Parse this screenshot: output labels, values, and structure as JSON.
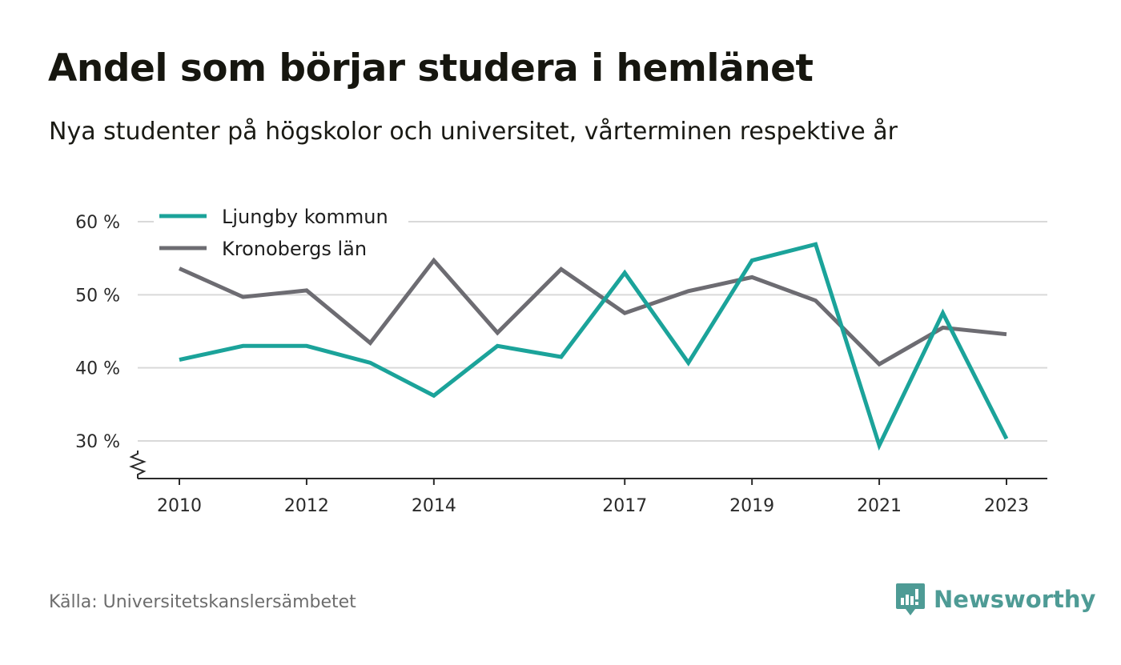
{
  "chart_data": {
    "type": "line",
    "title": "Andel som börjar studera i hemlänet",
    "subtitle": "Nya studenter på högskolor och universitet, vårterminen respektive år",
    "x": [
      2010,
      2011,
      2012,
      2013,
      2014,
      2015,
      2016,
      2017,
      2018,
      2019,
      2020,
      2021,
      2022,
      2023
    ],
    "x_tick_values": [
      2010,
      2012,
      2014,
      2017,
      2019,
      2021,
      2023
    ],
    "x_tick_labels": [
      "2010",
      "2012",
      "2014",
      "2017",
      "2019",
      "2021",
      "2023"
    ],
    "y_tick_values": [
      30,
      40,
      50,
      60
    ],
    "y_tick_labels": [
      "30 %",
      "40 %",
      "50 %",
      "60 %"
    ],
    "ylim": [
      25,
      60
    ],
    "y_axis_break": true,
    "grid": "horizontal",
    "legend_position": "top-left",
    "series": [
      {
        "name": "Ljungby kommun",
        "color": "#1ba39a",
        "values": [
          41.1,
          43.0,
          43.0,
          40.7,
          36.2,
          43.0,
          41.5,
          53.0,
          40.7,
          54.7,
          56.9,
          29.4,
          47.5,
          30.3
        ]
      },
      {
        "name": "Kronobergs län",
        "color": "#6d6c72",
        "values": [
          53.6,
          49.7,
          50.6,
          43.4,
          54.7,
          44.8,
          53.5,
          47.5,
          50.5,
          52.4,
          49.2,
          40.5,
          45.5,
          44.6
        ]
      }
    ]
  },
  "footer": {
    "source": "Källa: Universitetskanslersämbetet",
    "brand": "Newsworthy",
    "brand_color": "#4e9b95",
    "logo_icon": "bar-chart-speech-bubble-icon"
  }
}
